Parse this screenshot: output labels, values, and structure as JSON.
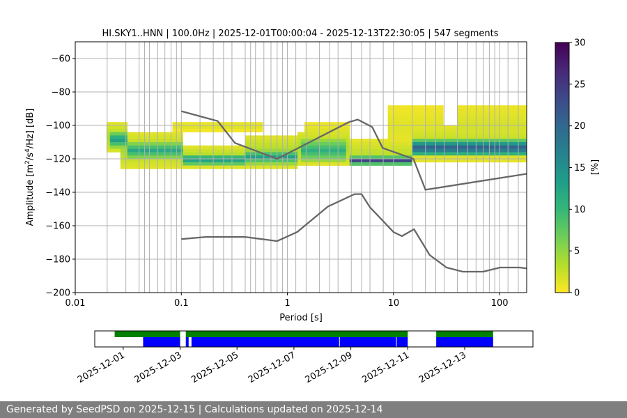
{
  "chart_data": [
    {
      "type": "heatmap",
      "title": "HI.SKY1..HNN | 100.0Hz | 2025-12-01T00:00:04 - 2025-12-13T22:30:05 | 547 segments",
      "xlabel": "Period [s]",
      "ylabel_parts": [
        "Amplitude [m",
        "2",
        "/s",
        "4",
        "/Hz] [dB]"
      ],
      "x_scale": "log",
      "xlim": [
        0.01,
        180
      ],
      "ylim": [
        -200,
        -50
      ],
      "x_ticks": [
        {
          "v": 0.01,
          "label": "0.01"
        },
        {
          "v": 0.1,
          "label": "0.1"
        },
        {
          "v": 1,
          "label": "1"
        },
        {
          "v": 10,
          "label": "10"
        },
        {
          "v": 100,
          "label": "100"
        }
      ],
      "y_ticks": [
        {
          "v": -60,
          "label": "−60"
        },
        {
          "v": -80,
          "label": "−80"
        },
        {
          "v": -100,
          "label": "−100"
        },
        {
          "v": -120,
          "label": "−120"
        },
        {
          "v": -140,
          "label": "−140"
        },
        {
          "v": -160,
          "label": "−160"
        },
        {
          "v": -180,
          "label": "−180"
        },
        {
          "v": -200,
          "label": "−200"
        }
      ],
      "grid": true,
      "colorbar": {
        "label": "[%]",
        "range": [
          0,
          30
        ],
        "ticks": [
          {
            "v": 0,
            "label": "0"
          },
          {
            "v": 5,
            "label": "5"
          },
          {
            "v": 10,
            "label": "10"
          },
          {
            "v": 15,
            "label": "15"
          },
          {
            "v": 20,
            "label": "20"
          },
          {
            "v": 25,
            "label": "25"
          },
          {
            "v": 30,
            "label": "30"
          }
        ],
        "colormap_reversed": "viridis",
        "stops": [
          "#fde725",
          "#b5de2b",
          "#6ece58",
          "#35b779",
          "#1f9e89",
          "#26828e",
          "#31688e",
          "#3e4989",
          "#482878",
          "#440154"
        ]
      },
      "noise_model_color": "#666666",
      "high_noise_model": [
        [
          0.1,
          -91.5
        ],
        [
          0.22,
          -97.4
        ],
        [
          0.32,
          -110.5
        ],
        [
          0.8,
          -120
        ],
        [
          3.8,
          -98
        ],
        [
          4.6,
          -96.5
        ],
        [
          6.3,
          -101
        ],
        [
          7.9,
          -113.5
        ],
        [
          15.4,
          -120
        ],
        [
          20,
          -138.5
        ],
        [
          354.8,
          -126
        ]
      ],
      "low_noise_model": [
        [
          0.1,
          -168
        ],
        [
          0.17,
          -166.7
        ],
        [
          0.4,
          -166.7
        ],
        [
          0.8,
          -169.2
        ],
        [
          1.24,
          -163.7
        ],
        [
          2.4,
          -148.6
        ],
        [
          4.3,
          -141.1
        ],
        [
          5,
          -141.1
        ],
        [
          6,
          -149
        ],
        [
          10,
          -163.8
        ],
        [
          12,
          -166.2
        ],
        [
          15.6,
          -162.1
        ],
        [
          21.9,
          -177.5
        ],
        [
          31.6,
          -185
        ],
        [
          45,
          -187.5
        ],
        [
          70,
          -187.5
        ],
        [
          101,
          -185
        ],
        [
          154,
          -185
        ],
        [
          328,
          -187.5
        ]
      ],
      "psd_bands": [
        {
          "x0": 0.019,
          "x1": 0.03,
          "lo": -116,
          "hi": -99,
          "peak": 4
        },
        {
          "x0": 0.022,
          "x1": 0.03,
          "lo": -113,
          "hi": -104,
          "peak": 14
        },
        {
          "x0": 0.026,
          "x1": 0.1,
          "lo": -125,
          "hi": -105,
          "peak": 4
        },
        {
          "x0": 0.03,
          "x1": 0.1,
          "lo": -120,
          "hi": -110,
          "peak": 12
        },
        {
          "x0": 0.1,
          "x1": 0.4,
          "lo": -125,
          "hi": -113,
          "peak": 4
        },
        {
          "x0": 0.1,
          "x1": 0.4,
          "lo": -124,
          "hi": -117,
          "peak": 14
        },
        {
          "x0": 0.4,
          "x1": 1.2,
          "lo": -125,
          "hi": -107,
          "peak": 4
        },
        {
          "x0": 0.4,
          "x1": 1.2,
          "lo": -123,
          "hi": -115,
          "peak": 13
        },
        {
          "x0": 1.2,
          "x1": 4,
          "lo": -123,
          "hi": -104,
          "peak": 4
        },
        {
          "x0": 1.3,
          "x1": 3.6,
          "lo": -122,
          "hi": -108,
          "peak": 11
        },
        {
          "x0": 4,
          "x1": 15,
          "lo": -124,
          "hi": -109,
          "peak": 3
        },
        {
          "x0": 4,
          "x1": 15,
          "lo": -123,
          "hi": -119,
          "peak": 24
        },
        {
          "x0": 15,
          "x1": 180,
          "lo": -121,
          "hi": -100,
          "peak": 3
        },
        {
          "x0": 15,
          "x1": 180,
          "lo": -118,
          "hi": -109,
          "peak": 22
        },
        {
          "x0": 0.08,
          "x1": 0.6,
          "lo": -103,
          "hi": -98,
          "peak": 1.5
        },
        {
          "x0": 1.5,
          "x1": 4,
          "lo": -113,
          "hi": -99,
          "peak": 2
        },
        {
          "x0": 9,
          "x1": 30,
          "lo": -115,
          "hi": -88,
          "peak": 1.5
        },
        {
          "x0": 40,
          "x1": 180,
          "lo": -114,
          "hi": -88,
          "peak": 2
        }
      ],
      "vertical_gridlines": [
        0.02,
        0.03,
        0.04,
        0.045,
        0.05,
        0.06,
        0.07,
        0.08,
        0.09,
        0.15,
        0.2,
        0.25,
        0.3,
        0.4,
        0.45,
        0.5,
        0.6,
        0.7,
        0.8,
        0.9,
        1.2,
        1.5,
        2,
        2.5,
        3,
        4,
        5,
        6,
        8,
        15,
        20,
        25,
        30,
        40,
        50,
        60,
        70,
        80,
        90,
        120,
        150
      ]
    },
    {
      "type": "timeline",
      "x_ticks": [
        "2025-12-01",
        "2025-12-03",
        "2025-12-05",
        "2025-12-07",
        "2025-12-09",
        "2025-12-11",
        "2025-12-13"
      ],
      "tick_days": [
        1,
        3,
        5,
        7,
        9,
        11,
        13
      ],
      "xlim_days": [
        0.0,
        15.4
      ],
      "green_color": "#008000",
      "blue_color": "#0000ff",
      "green_segments": [
        [
          0.7,
          3.0
        ],
        [
          3.2,
          11.0
        ],
        [
          12.0,
          14.0
        ]
      ],
      "blue_segments": [
        [
          1.7,
          3.0
        ],
        [
          3.2,
          3.3
        ],
        [
          3.4,
          11.0
        ],
        [
          12.0,
          14.0
        ]
      ],
      "blue_gaps": [
        8.6,
        10.6
      ]
    }
  ],
  "footer": "Generated by SeedPSD on 2025-12-15 | Calculations updated on 2025-12-14"
}
